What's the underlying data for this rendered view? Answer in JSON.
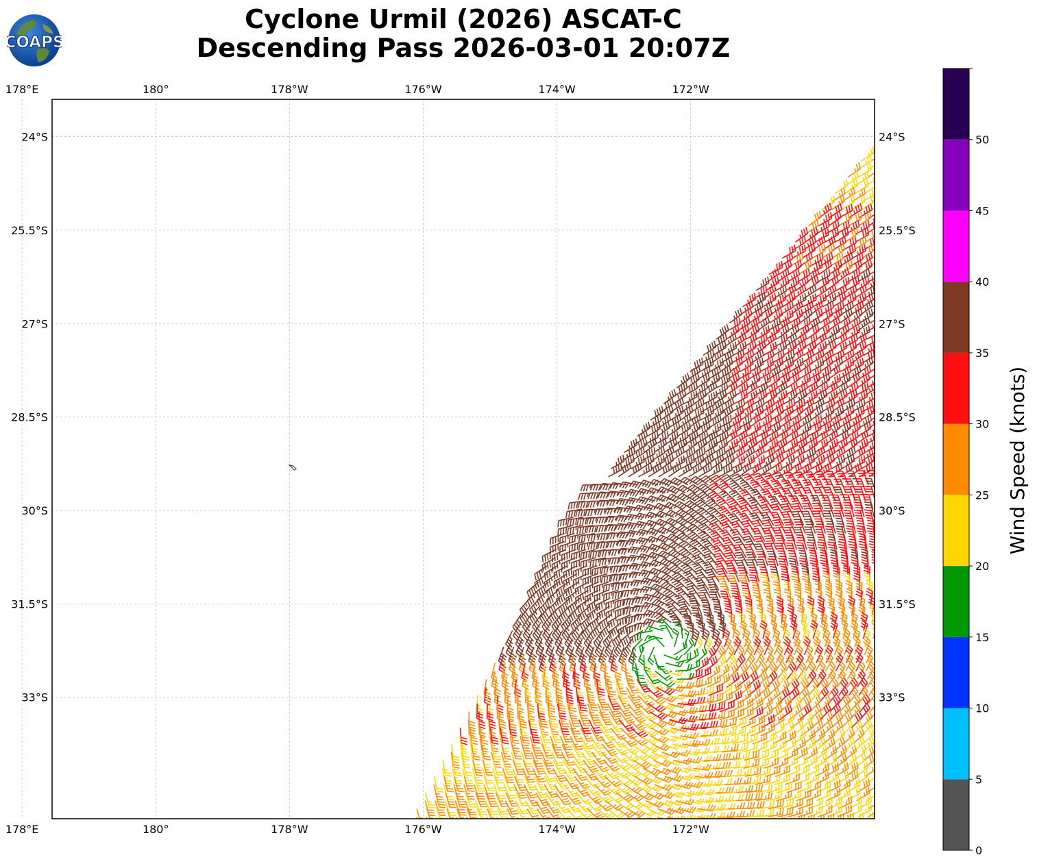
{
  "title": {
    "line1": "Cyclone Urmil (2026) ASCAT-C",
    "line2": "Descending Pass 2026-03-01 20:07Z"
  },
  "logo": {
    "text": "COAPS",
    "icon": "coaps-globe-logo"
  },
  "map": {
    "lon_range": [
      178.45,
      190.75
    ],
    "lat_range": [
      -34.95,
      -23.4
    ],
    "lon_ticks": [
      {
        "value": 178,
        "label": "178°E"
      },
      {
        "value": 180,
        "label": "180°"
      },
      {
        "value": 182,
        "label": "178°W"
      },
      {
        "value": 184,
        "label": "176°W"
      },
      {
        "value": 186,
        "label": "174°W"
      },
      {
        "value": 188,
        "label": "172°W"
      }
    ],
    "lat_ticks": [
      {
        "value": -24,
        "label": "24°S"
      },
      {
        "value": -25.5,
        "label": "25.5°S"
      },
      {
        "value": -27,
        "label": "27°S"
      },
      {
        "value": -28.5,
        "label": "28.5°S"
      },
      {
        "value": -30,
        "label": "30°S"
      },
      {
        "value": -31.5,
        "label": "31.5°S"
      },
      {
        "value": -33,
        "label": "33°S"
      }
    ],
    "gridlines": true,
    "island": {
      "lon": 182.05,
      "lat": -29.3
    },
    "swath": {
      "west_edge": [
        [
          191.2,
          -23.4
        ],
        [
          186.2,
          -30.0
        ],
        [
          183.5,
          -35.4
        ]
      ],
      "east_edge": [
        [
          192.5,
          -23.4
        ],
        [
          192.5,
          -35.4
        ]
      ]
    },
    "center": {
      "lon": 187.6,
      "lat": -32.2
    }
  },
  "colorbar": {
    "label": "Wind Speed (knots)",
    "bins": [
      {
        "min": 0,
        "max": 5,
        "color": "#555555"
      },
      {
        "min": 5,
        "max": 10,
        "color": "#00bfff"
      },
      {
        "min": 10,
        "max": 15,
        "color": "#0033ff"
      },
      {
        "min": 15,
        "max": 20,
        "color": "#009900"
      },
      {
        "min": 20,
        "max": 25,
        "color": "#ffd700"
      },
      {
        "min": 25,
        "max": 30,
        "color": "#ff8c00"
      },
      {
        "min": 30,
        "max": 35,
        "color": "#ff0f0f"
      },
      {
        "min": 35,
        "max": 40,
        "color": "#7f3a26"
      },
      {
        "min": 40,
        "max": 45,
        "color": "#ff00ff"
      },
      {
        "min": 45,
        "max": 50,
        "color": "#8800bb"
      },
      {
        "min": 50,
        "max": 55,
        "color": "#2a0055"
      }
    ],
    "tick_labels": [
      "0",
      "5",
      "10",
      "15",
      "20",
      "25",
      "30",
      "35",
      "40",
      "45",
      "50"
    ]
  }
}
